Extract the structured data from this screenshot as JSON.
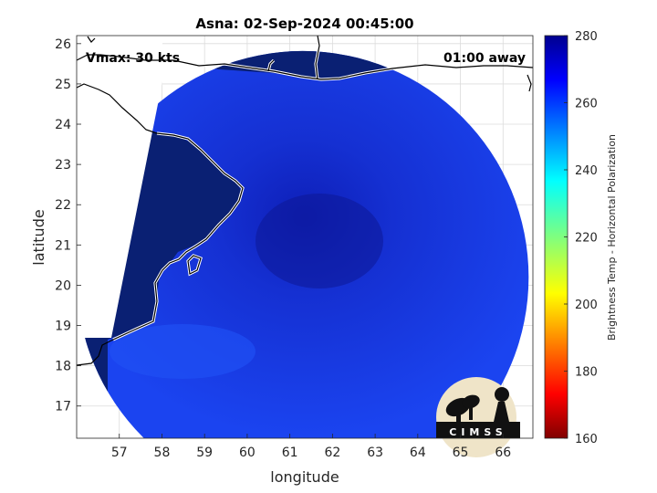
{
  "plot": {
    "title": "Asna: 02-Sep-2024 00:45:00",
    "vmax_label": "Vmax: 30 kts",
    "time_label": "01:00 away",
    "xlabel": "longitude",
    "ylabel": "latitude",
    "colorbar_label": "Brightness Temp - Horizontal Polarization",
    "logo_text": "CIMSS"
  },
  "chart_data": {
    "type": "heatmap",
    "title": "Asna: 02-Sep-2024 00:45:00",
    "xlabel": "longitude",
    "ylabel": "latitude",
    "xlim": [
      56,
      66.7
    ],
    "ylim": [
      16.2,
      26.2
    ],
    "xticks": [
      57,
      58,
      59,
      60,
      61,
      62,
      63,
      64,
      65,
      66
    ],
    "yticks": [
      17,
      18,
      19,
      20,
      21,
      22,
      23,
      24,
      25,
      26
    ],
    "grid": true,
    "colorbar": {
      "label": "Brightness Temp - Horizontal Polarization",
      "range": [
        160,
        280
      ],
      "ticks": [
        160,
        180,
        200,
        220,
        240,
        260,
        280
      ],
      "colormap": "jet"
    },
    "storm_center": {
      "lon": 61.5,
      "lat": 21.2
    },
    "swath": {
      "center_lon": 61.3,
      "center_lat": 20.2,
      "radius_deg": 5.3
    },
    "land_temperature": 280,
    "ocean_temperature_range": [
      262,
      272
    ],
    "colors": {
      "land": "#0a2073",
      "ocean": "#1a3ce6",
      "coast": "#ffffff"
    },
    "annotations": [
      "Vmax: 30 kts",
      "01:00 away"
    ]
  }
}
